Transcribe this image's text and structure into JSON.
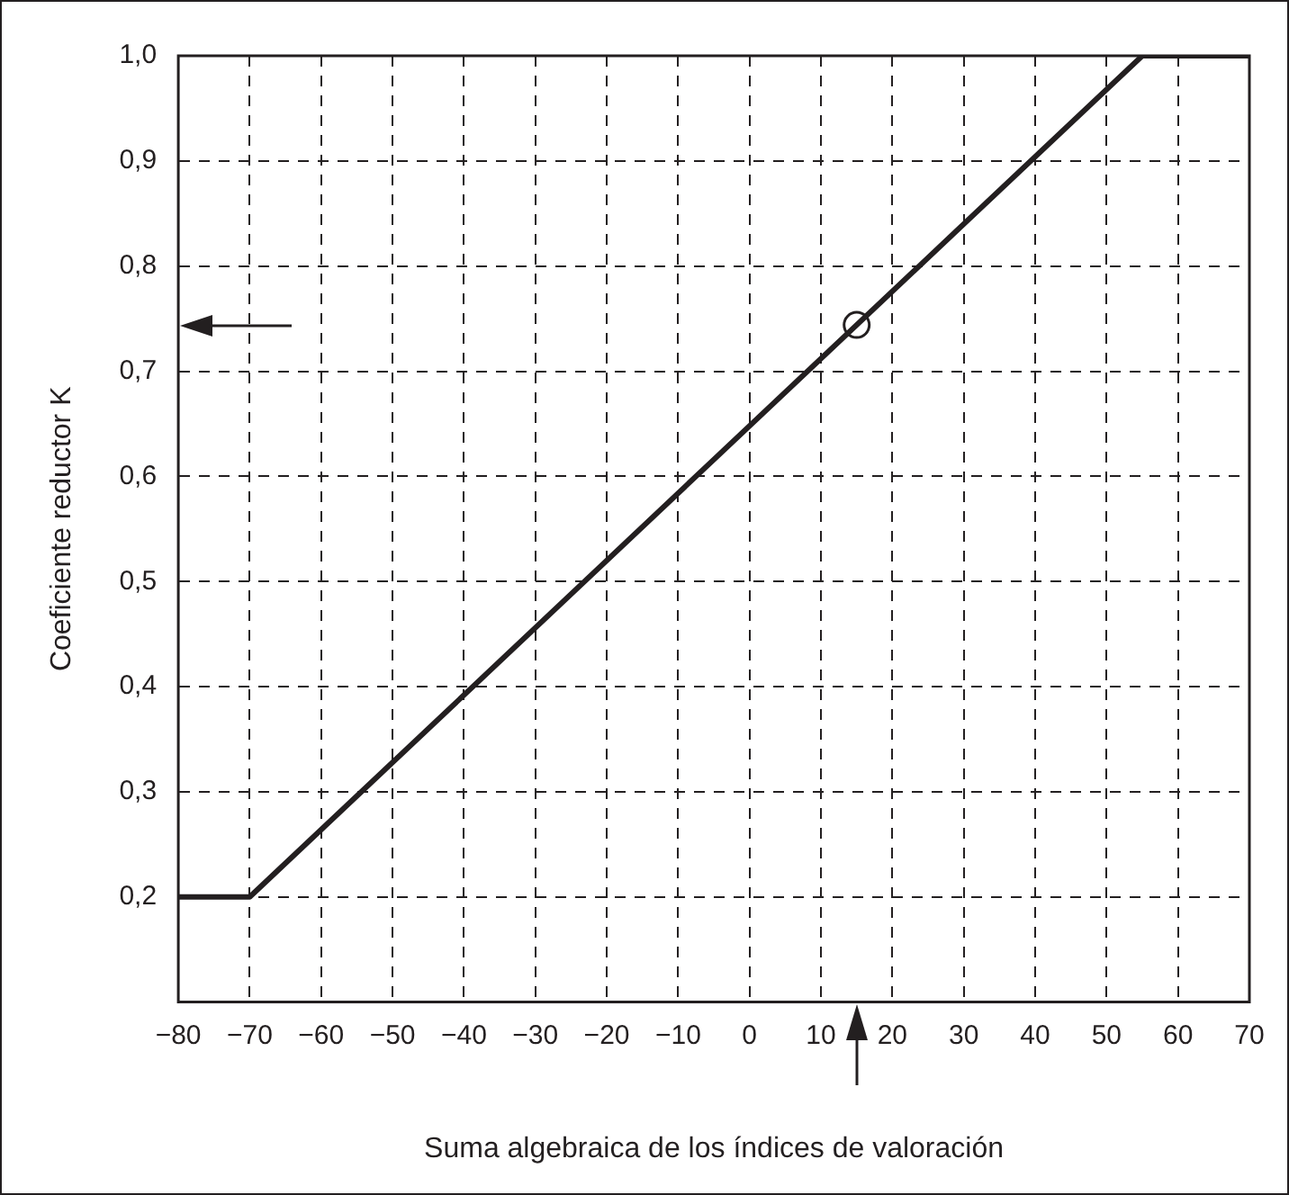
{
  "chart_data": {
    "type": "line",
    "xlabel": "Suma algebraica de los índices de valoración",
    "ylabel": "Coeficiente reductor K",
    "xlim": [
      -80,
      70
    ],
    "xticks": [
      {
        "value": -80,
        "label": "−80"
      },
      {
        "value": -70,
        "label": "−70"
      },
      {
        "value": -60,
        "label": "−60"
      },
      {
        "value": -50,
        "label": "−50"
      },
      {
        "value": -40,
        "label": "−40"
      },
      {
        "value": -30,
        "label": "−30"
      },
      {
        "value": -20,
        "label": "−20"
      },
      {
        "value": -10,
        "label": "−10"
      },
      0,
      10,
      20,
      30,
      40,
      50,
      60,
      70
    ],
    "ylim": [
      0.1,
      1.0
    ],
    "yticks": [
      {
        "value": 0.1,
        "label": null
      },
      {
        "value": 0.2,
        "label": "0,2"
      },
      {
        "value": 0.3,
        "label": "0,3"
      },
      {
        "value": 0.4,
        "label": "0,4"
      },
      {
        "value": 0.5,
        "label": "0,5"
      },
      {
        "value": 0.6,
        "label": "0,6"
      },
      {
        "value": 0.7,
        "label": "0,7"
      },
      {
        "value": 0.8,
        "label": "0,8"
      },
      {
        "value": 0.9,
        "label": "0,9"
      },
      {
        "value": 1.0,
        "label": "1,0"
      }
    ],
    "grid": true,
    "line_style": "solid",
    "series": [
      {
        "color": "#231f20",
        "x": [
          -80,
          -70,
          55,
          70
        ],
        "values": [
          0.2,
          0.2,
          1.0,
          1.0
        ]
      },
      {
        "type": "scatter",
        "color": "#231f20",
        "marker": "circle",
        "x": [
          15
        ],
        "values": [
          0.744
        ]
      }
    ]
  }
}
